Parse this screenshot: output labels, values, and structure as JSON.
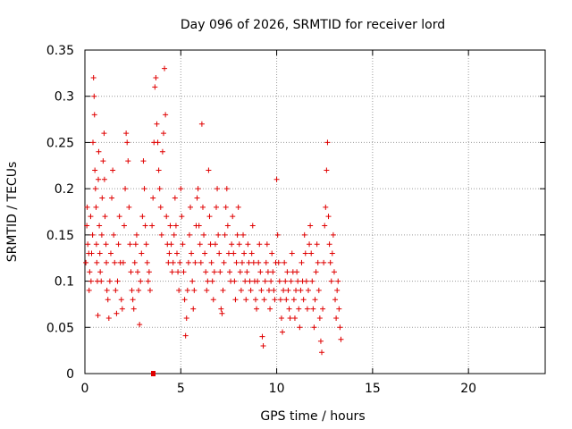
{
  "chart_data": {
    "type": "scatter",
    "title": "Day 096 of 2026, SRMTID for receiver lord",
    "xlabel": "GPS time / hours",
    "ylabel": "SRMTID / TECUs",
    "xlim": [
      0,
      24
    ],
    "ylim": [
      0,
      0.35
    ],
    "x_ticks": [
      0,
      5,
      10,
      15,
      20
    ],
    "x_tick_labels": [
      "0",
      "5",
      "10",
      "15",
      "20"
    ],
    "y_ticks": [
      0,
      0.05,
      0.1,
      0.15,
      0.2,
      0.25,
      0.3,
      0.35
    ],
    "y_tick_labels": [
      "0",
      "0.05",
      "0.1",
      "0.15",
      "0.2",
      "0.25",
      "0.3",
      "0.35"
    ],
    "grid": true,
    "marker": "plus",
    "color": "#e00000",
    "series": [
      {
        "points": [
          [
            0.05,
            0.12
          ],
          [
            0.1,
            0.16
          ],
          [
            0.12,
            0.18
          ],
          [
            0.15,
            0.14
          ],
          [
            0.2,
            0.13
          ],
          [
            0.22,
            0.09
          ],
          [
            0.25,
            0.11
          ],
          [
            0.3,
            0.17
          ],
          [
            0.32,
            0.1
          ],
          [
            0.35,
            0.13
          ],
          [
            0.4,
            0.15
          ],
          [
            0.42,
            0.25
          ],
          [
            0.45,
            0.32
          ],
          [
            0.48,
            0.3
          ],
          [
            0.5,
            0.28
          ],
          [
            0.52,
            0.22
          ],
          [
            0.55,
            0.2
          ],
          [
            0.58,
            0.18
          ],
          [
            0.6,
            0.14
          ],
          [
            0.62,
            0.12
          ],
          [
            0.65,
            0.1
          ],
          [
            0.68,
            0.063
          ],
          [
            0.7,
            0.21
          ],
          [
            0.72,
            0.24
          ],
          [
            0.75,
            0.16
          ],
          [
            0.78,
            0.13
          ],
          [
            0.8,
            0.11
          ],
          [
            0.85,
            0.1
          ],
          [
            0.88,
            0.15
          ],
          [
            0.9,
            0.19
          ],
          [
            0.95,
            0.23
          ],
          [
            1.0,
            0.26
          ],
          [
            1.02,
            0.21
          ],
          [
            1.05,
            0.17
          ],
          [
            1.1,
            0.14
          ],
          [
            1.12,
            0.12
          ],
          [
            1.15,
            0.09
          ],
          [
            1.2,
            0.08
          ],
          [
            1.25,
            0.06
          ],
          [
            1.3,
            0.1
          ],
          [
            1.35,
            0.13
          ],
          [
            1.4,
            0.19
          ],
          [
            1.45,
            0.22
          ],
          [
            1.5,
            0.15
          ],
          [
            1.55,
            0.12
          ],
          [
            1.6,
            0.09
          ],
          [
            1.65,
            0.065
          ],
          [
            1.7,
            0.1
          ],
          [
            1.75,
            0.14
          ],
          [
            1.8,
            0.17
          ],
          [
            1.85,
            0.12
          ],
          [
            1.9,
            0.08
          ],
          [
            1.95,
            0.07
          ],
          [
            2.0,
            0.12
          ],
          [
            2.05,
            0.16
          ],
          [
            2.1,
            0.2
          ],
          [
            2.15,
            0.26
          ],
          [
            2.2,
            0.25
          ],
          [
            2.25,
            0.23
          ],
          [
            2.3,
            0.18
          ],
          [
            2.35,
            0.14
          ],
          [
            2.4,
            0.11
          ],
          [
            2.45,
            0.09
          ],
          [
            2.5,
            0.08
          ],
          [
            2.55,
            0.07
          ],
          [
            2.6,
            0.12
          ],
          [
            2.65,
            0.14
          ],
          [
            2.7,
            0.15
          ],
          [
            2.75,
            0.11
          ],
          [
            2.8,
            0.09
          ],
          [
            2.85,
            0.053
          ],
          [
            2.9,
            0.1
          ],
          [
            2.95,
            0.13
          ],
          [
            3.0,
            0.17
          ],
          [
            3.05,
            0.23
          ],
          [
            3.1,
            0.2
          ],
          [
            3.15,
            0.16
          ],
          [
            3.2,
            0.14
          ],
          [
            3.25,
            0.12
          ],
          [
            3.3,
            0.1
          ],
          [
            3.35,
            0.11
          ],
          [
            3.4,
            0.09
          ],
          [
            3.5,
            0.16
          ],
          [
            3.55,
            0.19
          ],
          [
            3.6,
            0.25
          ],
          [
            3.65,
            0.31
          ],
          [
            3.7,
            0.32
          ],
          [
            3.75,
            0.27
          ],
          [
            3.8,
            0.25
          ],
          [
            3.85,
            0.22
          ],
          [
            3.9,
            0.2
          ],
          [
            3.95,
            0.18
          ],
          [
            4.0,
            0.15
          ],
          [
            4.05,
            0.24
          ],
          [
            4.1,
            0.26
          ],
          [
            4.15,
            0.33
          ],
          [
            4.2,
            0.28
          ],
          [
            4.25,
            0.17
          ],
          [
            4.3,
            0.14
          ],
          [
            4.35,
            0.12
          ],
          [
            4.4,
            0.13
          ],
          [
            4.45,
            0.16
          ],
          [
            4.5,
            0.14
          ],
          [
            4.55,
            0.11
          ],
          [
            4.6,
            0.12
          ],
          [
            4.65,
            0.15
          ],
          [
            4.7,
            0.19
          ],
          [
            4.75,
            0.16
          ],
          [
            4.8,
            0.13
          ],
          [
            4.85,
            0.11
          ],
          [
            4.9,
            0.09
          ],
          [
            4.95,
            0.12
          ],
          [
            5.0,
            0.2
          ],
          [
            5.05,
            0.17
          ],
          [
            5.1,
            0.14
          ],
          [
            5.15,
            0.11
          ],
          [
            5.2,
            0.08
          ],
          [
            5.25,
            0.041
          ],
          [
            5.3,
            0.06
          ],
          [
            5.35,
            0.09
          ],
          [
            5.4,
            0.12
          ],
          [
            5.45,
            0.15
          ],
          [
            5.5,
            0.18
          ],
          [
            5.55,
            0.13
          ],
          [
            5.6,
            0.1
          ],
          [
            5.65,
            0.07
          ],
          [
            5.7,
            0.09
          ],
          [
            5.75,
            0.12
          ],
          [
            5.8,
            0.16
          ],
          [
            5.85,
            0.19
          ],
          [
            5.9,
            0.2
          ],
          [
            5.95,
            0.16
          ],
          [
            6.0,
            0.14
          ],
          [
            6.05,
            0.12
          ],
          [
            6.1,
            0.27
          ],
          [
            6.15,
            0.18
          ],
          [
            6.2,
            0.15
          ],
          [
            6.25,
            0.13
          ],
          [
            6.3,
            0.11
          ],
          [
            6.35,
            0.09
          ],
          [
            6.4,
            0.1
          ],
          [
            6.45,
            0.22
          ],
          [
            6.5,
            0.17
          ],
          [
            6.55,
            0.14
          ],
          [
            6.6,
            0.12
          ],
          [
            6.65,
            0.1
          ],
          [
            6.7,
            0.08
          ],
          [
            6.75,
            0.11
          ],
          [
            6.8,
            0.14
          ],
          [
            6.85,
            0.18
          ],
          [
            6.9,
            0.2
          ],
          [
            6.95,
            0.15
          ],
          [
            7.0,
            0.13
          ],
          [
            7.05,
            0.11
          ],
          [
            7.1,
            0.07
          ],
          [
            7.15,
            0.065
          ],
          [
            7.2,
            0.09
          ],
          [
            7.25,
            0.12
          ],
          [
            7.3,
            0.15
          ],
          [
            7.35,
            0.18
          ],
          [
            7.4,
            0.2
          ],
          [
            7.45,
            0.16
          ],
          [
            7.5,
            0.13
          ],
          [
            7.55,
            0.11
          ],
          [
            7.6,
            0.1
          ],
          [
            7.65,
            0.14
          ],
          [
            7.7,
            0.17
          ],
          [
            7.75,
            0.13
          ],
          [
            7.8,
            0.1
          ],
          [
            7.85,
            0.08
          ],
          [
            7.9,
            0.12
          ],
          [
            7.95,
            0.15
          ],
          [
            8.0,
            0.18
          ],
          [
            8.05,
            0.14
          ],
          [
            8.1,
            0.11
          ],
          [
            8.15,
            0.09
          ],
          [
            8.2,
            0.12
          ],
          [
            8.25,
            0.15
          ],
          [
            8.3,
            0.13
          ],
          [
            8.35,
            0.1
          ],
          [
            8.4,
            0.08
          ],
          [
            8.45,
            0.11
          ],
          [
            8.5,
            0.14
          ],
          [
            8.55,
            0.12
          ],
          [
            8.6,
            0.1
          ],
          [
            8.65,
            0.09
          ],
          [
            8.7,
            0.13
          ],
          [
            8.75,
            0.16
          ],
          [
            8.8,
            0.12
          ],
          [
            8.85,
            0.1
          ],
          [
            8.9,
            0.08
          ],
          [
            8.95,
            0.07
          ],
          [
            9.0,
            0.1
          ],
          [
            9.05,
            0.12
          ],
          [
            9.1,
            0.14
          ],
          [
            9.15,
            0.11
          ],
          [
            9.2,
            0.09
          ],
          [
            9.25,
            0.04
          ],
          [
            9.3,
            0.03
          ],
          [
            9.35,
            0.08
          ],
          [
            9.4,
            0.1
          ],
          [
            9.45,
            0.12
          ],
          [
            9.5,
            0.14
          ],
          [
            9.55,
            0.11
          ],
          [
            9.6,
            0.09
          ],
          [
            9.65,
            0.07
          ],
          [
            9.7,
            0.1
          ],
          [
            9.75,
            0.13
          ],
          [
            9.8,
            0.11
          ],
          [
            9.85,
            0.09
          ],
          [
            9.9,
            0.08
          ],
          [
            9.95,
            0.12
          ],
          [
            10.0,
            0.21
          ],
          [
            10.05,
            0.15
          ],
          [
            10.1,
            0.12
          ],
          [
            10.15,
            0.1
          ],
          [
            10.2,
            0.08
          ],
          [
            10.25,
            0.06
          ],
          [
            10.3,
            0.045
          ],
          [
            10.35,
            0.09
          ],
          [
            10.4,
            0.12
          ],
          [
            10.45,
            0.1
          ],
          [
            10.5,
            0.08
          ],
          [
            10.55,
            0.11
          ],
          [
            10.6,
            0.09
          ],
          [
            10.65,
            0.07
          ],
          [
            10.7,
            0.06
          ],
          [
            10.75,
            0.1
          ],
          [
            10.8,
            0.13
          ],
          [
            10.85,
            0.11
          ],
          [
            10.9,
            0.08
          ],
          [
            10.95,
            0.06
          ],
          [
            11.0,
            0.09
          ],
          [
            11.05,
            0.11
          ],
          [
            11.1,
            0.1
          ],
          [
            11.15,
            0.07
          ],
          [
            11.2,
            0.05
          ],
          [
            11.25,
            0.09
          ],
          [
            11.3,
            0.12
          ],
          [
            11.35,
            0.1
          ],
          [
            11.4,
            0.08
          ],
          [
            11.45,
            0.15
          ],
          [
            11.5,
            0.13
          ],
          [
            11.55,
            0.1
          ],
          [
            11.6,
            0.07
          ],
          [
            11.65,
            0.09
          ],
          [
            11.7,
            0.14
          ],
          [
            11.75,
            0.16
          ],
          [
            11.8,
            0.13
          ],
          [
            11.85,
            0.1
          ],
          [
            11.9,
            0.07
          ],
          [
            11.95,
            0.05
          ],
          [
            12.0,
            0.08
          ],
          [
            12.05,
            0.11
          ],
          [
            12.1,
            0.14
          ],
          [
            12.15,
            0.12
          ],
          [
            12.2,
            0.09
          ],
          [
            12.25,
            0.06
          ],
          [
            12.3,
            0.035
          ],
          [
            12.35,
            0.023
          ],
          [
            12.4,
            0.07
          ],
          [
            12.45,
            0.12
          ],
          [
            12.5,
            0.16
          ],
          [
            12.55,
            0.18
          ],
          [
            12.6,
            0.22
          ],
          [
            12.65,
            0.25
          ],
          [
            12.7,
            0.17
          ],
          [
            12.75,
            0.14
          ],
          [
            12.8,
            0.12
          ],
          [
            12.85,
            0.1
          ],
          [
            12.9,
            0.13
          ],
          [
            12.95,
            0.15
          ],
          [
            13.0,
            0.11
          ],
          [
            13.05,
            0.08
          ],
          [
            13.1,
            0.06
          ],
          [
            13.15,
            0.09
          ],
          [
            13.2,
            0.1
          ],
          [
            13.25,
            0.07
          ],
          [
            13.3,
            0.05
          ],
          [
            13.35,
            0.037
          ]
        ]
      }
    ]
  }
}
